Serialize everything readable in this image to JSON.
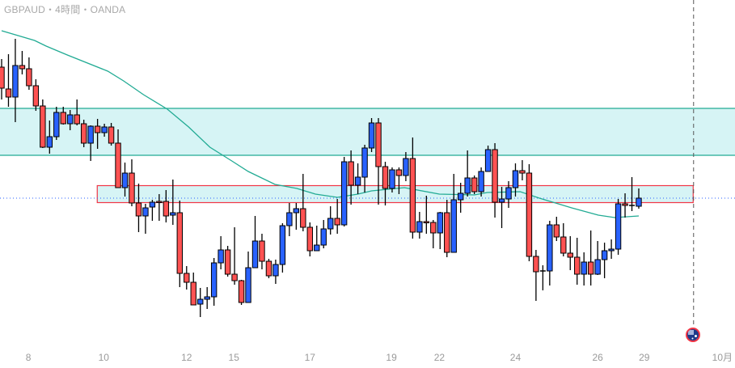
{
  "header": {
    "title": "GBPAUD・4時間・OANDA"
  },
  "colors": {
    "up": "#2962FF",
    "down": "#FF5252",
    "ma": "#22AB94",
    "zone_fill": "#D6F4F5",
    "zone_line": "#22AB94",
    "red_zone_border": "#F23645",
    "price_line": "#2962FF"
  },
  "event_icon": "australia-flag-icon",
  "chart_data": {
    "type": "candlestick",
    "title": "GBPAUD・4時間・OANDA",
    "note_units": "relative price (no price axis shown)",
    "candles": [
      [
        317,
        327,
        277,
        291
      ],
      [
        290,
        333,
        268,
        280
      ],
      [
        280,
        352,
        249,
        319
      ],
      [
        319,
        337,
        308,
        315
      ],
      [
        315,
        329,
        289,
        294
      ],
      [
        294,
        302,
        263,
        269
      ],
      [
        269,
        277,
        217,
        218
      ],
      [
        218,
        251,
        210,
        231
      ],
      [
        231,
        268,
        227,
        261
      ],
      [
        261,
        268,
        246,
        247
      ],
      [
        247,
        264,
        239,
        258
      ],
      [
        258,
        277,
        245,
        247
      ],
      [
        247,
        252,
        218,
        223
      ],
      [
        223,
        245,
        201,
        244
      ],
      [
        244,
        253,
        216,
        236
      ],
      [
        236,
        247,
        231,
        243
      ],
      [
        243,
        248,
        220,
        223
      ],
      [
        223,
        240,
        168,
        168
      ],
      [
        168,
        199,
        157,
        186
      ],
      [
        186,
        203,
        145,
        149
      ],
      [
        149,
        173,
        113,
        133
      ],
      [
        133,
        148,
        111,
        143
      ],
      [
        144,
        153,
        127,
        150
      ],
      [
        151,
        160,
        127,
        150
      ],
      [
        151,
        165,
        125,
        133
      ],
      [
        134,
        178,
        122,
        137
      ],
      [
        137,
        152,
        45,
        62
      ],
      [
        62,
        71,
        42,
        51
      ],
      [
        51,
        63,
        23,
        23
      ],
      [
        24,
        44,
        8,
        30
      ],
      [
        30,
        45,
        18,
        33
      ],
      [
        33,
        81,
        22,
        75
      ],
      [
        75,
        108,
        67,
        91
      ],
      [
        91,
        96,
        58,
        61
      ],
      [
        61,
        119,
        48,
        53
      ],
      [
        53,
        54,
        23,
        26
      ],
      [
        26,
        89,
        26,
        69
      ],
      [
        69,
        133,
        69,
        102
      ],
      [
        102,
        111,
        67,
        77
      ],
      [
        77,
        80,
        56,
        59
      ],
      [
        59,
        79,
        49,
        73
      ],
      [
        73,
        124,
        63,
        121
      ],
      [
        121,
        149,
        108,
        137
      ],
      [
        137,
        149,
        116,
        142
      ],
      [
        142,
        185,
        114,
        119
      ],
      [
        119,
        125,
        83,
        90
      ],
      [
        90,
        121,
        90,
        97
      ],
      [
        97,
        128,
        93,
        117
      ],
      [
        117,
        145,
        110,
        130
      ],
      [
        130,
        154,
        111,
        122
      ],
      [
        122,
        206,
        120,
        200
      ],
      [
        200,
        214,
        147,
        171
      ],
      [
        171,
        198,
        160,
        181
      ],
      [
        181,
        221,
        162,
        217
      ],
      [
        217,
        254,
        212,
        248
      ],
      [
        248,
        254,
        147,
        194
      ],
      [
        194,
        200,
        146,
        167
      ],
      [
        167,
        193,
        162,
        190
      ],
      [
        190,
        193,
        160,
        183
      ],
      [
        183,
        212,
        176,
        204
      ],
      [
        204,
        230,
        105,
        113
      ],
      [
        113,
        138,
        105,
        126
      ],
      [
        126,
        158,
        111,
        125
      ],
      [
        125,
        128,
        93,
        112
      ],
      [
        112,
        138,
        92,
        137
      ],
      [
        137,
        153,
        82,
        88
      ],
      [
        88,
        185,
        88,
        153
      ],
      [
        153,
        174,
        137,
        161
      ],
      [
        161,
        214,
        157,
        180
      ],
      [
        180,
        183,
        160,
        163
      ],
      [
        163,
        193,
        157,
        188
      ],
      [
        188,
        220,
        188,
        215
      ],
      [
        215,
        223,
        131,
        150
      ],
      [
        150,
        169,
        118,
        154
      ],
      [
        154,
        176,
        143,
        168
      ],
      [
        168,
        198,
        157,
        189
      ],
      [
        189,
        202,
        177,
        186
      ],
      [
        186,
        197,
        77,
        83
      ],
      [
        83,
        91,
        28,
        64
      ],
      [
        65,
        72,
        41,
        65
      ],
      [
        65,
        127,
        47,
        122
      ],
      [
        122,
        132,
        102,
        107
      ],
      [
        107,
        124,
        83,
        87
      ],
      [
        87,
        108,
        66,
        82
      ],
      [
        82,
        106,
        48,
        61
      ],
      [
        61,
        88,
        47,
        76
      ],
      [
        76,
        115,
        47,
        61
      ],
      [
        61,
        102,
        60,
        79
      ],
      [
        79,
        100,
        56,
        90
      ],
      [
        90,
        104,
        80,
        92
      ],
      [
        92,
        154,
        85,
        148
      ],
      [
        148,
        161,
        131,
        146
      ],
      [
        146,
        181,
        139,
        146
      ],
      [
        145,
        167,
        142,
        155
      ]
    ],
    "moving_average": [
      [
        0,
        362
      ],
      [
        4.8,
        350
      ],
      [
        6.5,
        343
      ],
      [
        9.6,
        332
      ],
      [
        15.5,
        312
      ],
      [
        17.8,
        300
      ],
      [
        20.7,
        283
      ],
      [
        24.2,
        265
      ],
      [
        27.3,
        243
      ],
      [
        30.4,
        218
      ],
      [
        33.6,
        201
      ],
      [
        36,
        188
      ],
      [
        39.9,
        172
      ],
      [
        43.1,
        167
      ],
      [
        45.8,
        160
      ],
      [
        49,
        156
      ],
      [
        52,
        160
      ],
      [
        54,
        164
      ],
      [
        58.8,
        168
      ],
      [
        63.9,
        160
      ],
      [
        69,
        159
      ],
      [
        70.9,
        162
      ],
      [
        75.7,
        163
      ],
      [
        78.5,
        155
      ],
      [
        83.2,
        143
      ],
      [
        87.1,
        134
      ],
      [
        89.5,
        131
      ],
      [
        93,
        133
      ]
    ],
    "zones": [
      {
        "kind": "resistance",
        "top": 266,
        "bottom": 208,
        "from_bar": -1,
        "to_bar": 110
      },
      {
        "kind": "red-box",
        "top": 171,
        "bottom": 150,
        "from_bar": 13.9,
        "to_bar": 101
      }
    ],
    "current_price": 155,
    "future_marker_bar": 101,
    "x_tick_labels": [
      {
        "label": "8",
        "at_bar": 3.9
      },
      {
        "label": "10",
        "at_bar": 14.9
      },
      {
        "label": "12",
        "at_bar": 27
      },
      {
        "label": "15",
        "at_bar": 33.9
      },
      {
        "label": "17",
        "at_bar": 45
      },
      {
        "label": "19",
        "at_bar": 56.9
      },
      {
        "label": "22",
        "at_bar": 63.9
      },
      {
        "label": "24",
        "at_bar": 75
      },
      {
        "label": "26",
        "at_bar": 87
      },
      {
        "label": "29",
        "at_bar": 93.8
      },
      {
        "label": "10月",
        "at_bar": 105.2
      }
    ]
  }
}
